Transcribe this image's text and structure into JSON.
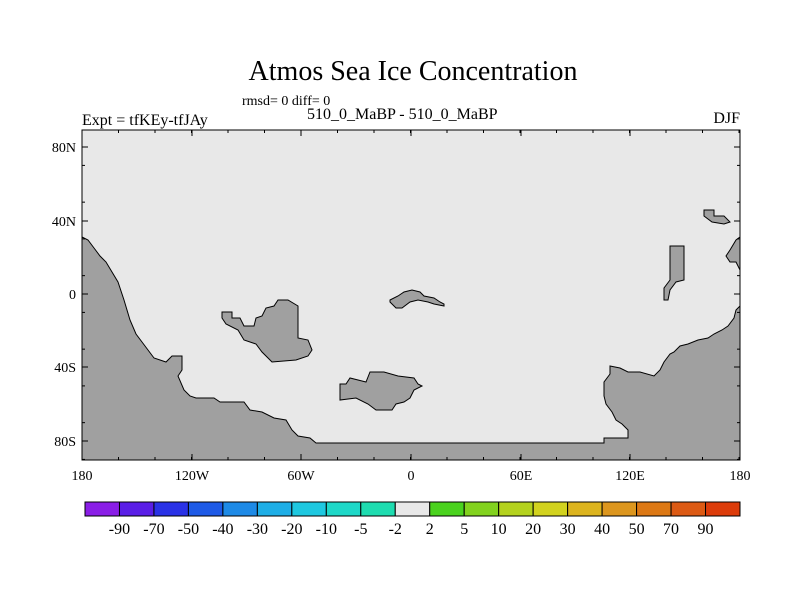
{
  "map": {
    "title": "Atmos Sea Ice Concentration",
    "stats": "rmsd= 0  diff= 0",
    "subtitle": "510_0_MaBP - 510_0_MaBP",
    "expt": "Expt = tfKEy-tfJAy",
    "season": "DJF",
    "lat_ticks": [
      "80N",
      "40N",
      "0",
      "40S",
      "80S"
    ],
    "lon_ticks": [
      "180",
      "120W",
      "60W",
      "0",
      "60E",
      "120E",
      "180"
    ],
    "ocean_color": "#e8e8e8",
    "land_color": "#a0a0a0"
  },
  "colorbar": {
    "labels": [
      "-90",
      "-70",
      "-50",
      "-40",
      "-30",
      "-20",
      "-10",
      "-5",
      "-2",
      "2",
      "5",
      "10",
      "20",
      "30",
      "40",
      "50",
      "70",
      "90"
    ],
    "colors": [
      "#8a1ee6",
      "#5a1ee6",
      "#2a32e6",
      "#1e5ae6",
      "#1e8ae6",
      "#1eaee6",
      "#1ec8e0",
      "#1ed8c8",
      "#1edcb0",
      "#e8e8e8",
      "#4ad21e",
      "#82d21e",
      "#b4d21e",
      "#d2d21e",
      "#dcb41e",
      "#dc961e",
      "#dc7814",
      "#dc5a14",
      "#dc3c0a"
    ]
  }
}
